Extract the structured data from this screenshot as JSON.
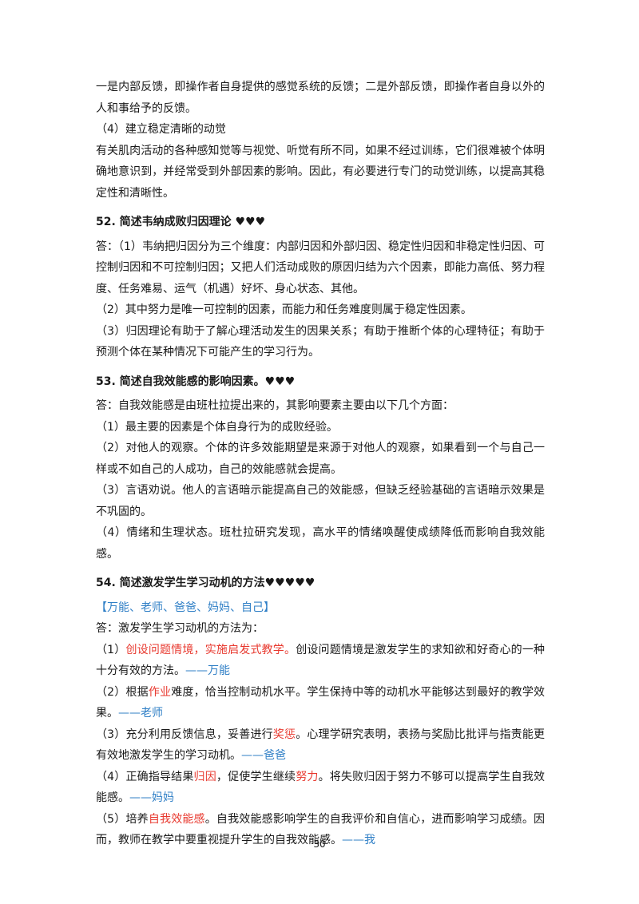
{
  "page": {
    "intro": [
      [
        {
          "text": "一是内部反馈，即操作者自身提供的感觉系统的反馈；二是外部反馈，即操作者自身以外的人和事给予的反馈。"
        }
      ],
      [
        {
          "text": "（4）建立稳定清晰的动觉"
        }
      ],
      [
        {
          "text": "有关肌肉活动的各种感知觉等与视觉、听觉有所不同，如果不经过训练，它们很难被个体明确地意识到，并经常受到外部因素的影响。因此，有必要进行专门的动觉训练，以提高其稳定性和清晰性。"
        }
      ]
    ],
    "sections": [
      {
        "heading": "52. 简述韦纳成败归因理论 ♥♥♥",
        "paragraphs": [
          [
            {
              "text": "答：（1）韦纳把归因分为三个维度：内部归因和外部归因、稳定性归因和非稳定性归因、可控制归因和不可控制归因；又把人们活动成败的原因归结为六个因素，即能力高低、努力程度、任务难易、运气（机遇）好坏、身心状态、其他。"
            }
          ],
          [
            {
              "text": "（2）其中努力是唯一可控制的因素，而能力和任务难度则属于稳定性因素。"
            }
          ],
          [
            {
              "text": "（3）归因理论有助于了解心理活动发生的因果关系；有助于推断个体的心理特征；有助于预测个体在某种情况下可能产生的学习行为。"
            }
          ]
        ]
      },
      {
        "heading": "53. 简述自我效能感的影响因素。♥♥♥",
        "paragraphs": [
          [
            {
              "text": "答：自我效能感是由班杜拉提出来的，其影响要素主要由以下几个方面："
            }
          ],
          [
            {
              "text": "（1）最主要的因素是个体自身行为的成败经验。"
            }
          ],
          [
            {
              "text": "（2）对他人的观察。个体的许多效能期望是来源于对他人的观察，如果看到一个与自己一样或不如自己的人成功，自己的效能感就会提高。"
            }
          ],
          [
            {
              "text": "（3）言语劝说。他人的言语暗示能提高自己的效能感，但缺乏经验基础的言语暗示效果是不巩固的。"
            }
          ],
          [
            {
              "text": "（4）情绪和生理状态。班杜拉研究发现，高水平的情绪唤醒使成绩降低而影响自我效能感。"
            }
          ]
        ]
      },
      {
        "heading": "54. 简述激发学生学习动机的方法♥♥♥♥♥",
        "paragraphs": [
          [
            {
              "text": "【万能、老师、爸爸、妈妈、自己】",
              "color": "#2f7fc6"
            }
          ],
          [
            {
              "text": "答：激发学生学习动机的方法为："
            }
          ],
          [
            {
              "text": "（1）"
            },
            {
              "text": "创设问题情境，实施启发式教学。",
              "color": "#e8392f"
            },
            {
              "text": "创设问题情境是激发学生的求知欲和好奇心的一种十分有效的方法。"
            },
            {
              "text": "——万能",
              "color": "#2f7fc6"
            }
          ],
          [
            {
              "text": "（2）根据"
            },
            {
              "text": "作业",
              "color": "#e8392f"
            },
            {
              "text": "难度，恰当控制动机水平。学生保持中等的动机水平能够达到最好的教学效果。"
            },
            {
              "text": "——老师",
              "color": "#2f7fc6"
            }
          ],
          [
            {
              "text": "（3）充分利用反馈信息，妥善进行"
            },
            {
              "text": "奖惩",
              "color": "#e8392f"
            },
            {
              "text": "。心理学研究表明，表扬与奖励比批评与指责能更有效地激发学生的学习动机。"
            },
            {
              "text": "——爸爸",
              "color": "#2f7fc6"
            }
          ],
          [
            {
              "text": "（4）正确指导结果"
            },
            {
              "text": "归因",
              "color": "#e8392f"
            },
            {
              "text": "，促使学生继续"
            },
            {
              "text": "努力",
              "color": "#e8392f"
            },
            {
              "text": "。将失败归因于努力不够可以提高学生自我效能感。"
            },
            {
              "text": "——妈妈",
              "color": "#2f7fc6"
            }
          ],
          [
            {
              "text": "（5）培养"
            },
            {
              "text": "自我效能感",
              "color": "#e8392f"
            },
            {
              "text": "。自我效能感影响学生的自我评价和自信心，进而影响学习成绩。因而，教师在教学中要重视提升学生的自我效能感。"
            },
            {
              "text": "——我",
              "color": "#2f7fc6"
            }
          ]
        ]
      }
    ],
    "page_number": "30"
  }
}
